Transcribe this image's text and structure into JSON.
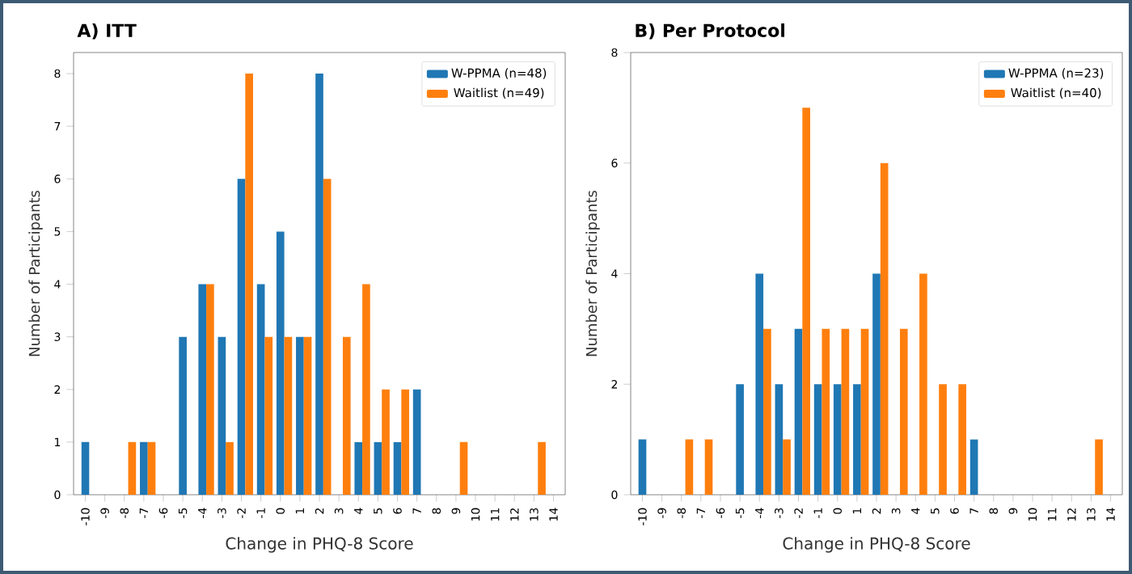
{
  "chart_data": [
    {
      "type": "bar",
      "title": "A) ITT",
      "xlabel": "Change in PHQ-8 Score",
      "ylabel": "Number of Participants",
      "categories": [
        "-10",
        "-9",
        "-8",
        "-7",
        "-6",
        "-5",
        "-4",
        "-3",
        "-2",
        "-1",
        "0",
        "1",
        "2",
        "3",
        "4",
        "5",
        "6",
        "7",
        "8",
        "9",
        "10",
        "11",
        "12",
        "13",
        "14"
      ],
      "series": [
        {
          "name": "W-PPMA (n=48)",
          "color": "#1f77b4",
          "values": [
            1,
            0,
            0,
            1,
            0,
            3,
            4,
            3,
            6,
            4,
            5,
            3,
            8,
            0,
            1,
            1,
            1,
            2,
            0,
            0,
            0,
            0,
            0,
            0,
            0
          ]
        },
        {
          "name": "Waitlist (n=49)",
          "color": "#ff7f0e",
          "values": [
            0,
            0,
            1,
            1,
            0,
            0,
            4,
            1,
            8,
            3,
            3,
            3,
            6,
            3,
            4,
            2,
            2,
            0,
            0,
            1,
            0,
            0,
            0,
            1,
            0
          ]
        }
      ],
      "ylim": [
        0,
        8.4
      ],
      "yticks": [
        0,
        1,
        2,
        3,
        4,
        5,
        6,
        7,
        8
      ],
      "legend": "top right"
    },
    {
      "type": "bar",
      "title": "B) Per Protocol",
      "xlabel": "Change in PHQ-8 Score",
      "ylabel": "Number of Participants",
      "categories": [
        "-10",
        "-9",
        "-8",
        "-7",
        "-6",
        "-5",
        "-4",
        "-3",
        "-2",
        "-1",
        "0",
        "1",
        "2",
        "3",
        "4",
        "5",
        "6",
        "7",
        "8",
        "9",
        "10",
        "11",
        "12",
        "13",
        "14"
      ],
      "series": [
        {
          "name": "W-PPMA (n=23)",
          "color": "#1f77b4",
          "values": [
            1,
            0,
            0,
            0,
            0,
            2,
            4,
            2,
            3,
            2,
            2,
            2,
            4,
            0,
            0,
            0,
            0,
            1,
            0,
            0,
            0,
            0,
            0,
            0,
            0
          ]
        },
        {
          "name": "Waitlist (n=40)",
          "color": "#ff7f0e",
          "values": [
            0,
            0,
            1,
            1,
            0,
            0,
            3,
            1,
            7,
            3,
            3,
            3,
            6,
            3,
            4,
            2,
            2,
            0,
            0,
            0,
            0,
            0,
            0,
            1,
            0
          ]
        }
      ],
      "ylim": [
        0,
        8
      ],
      "yticks": [
        0,
        2,
        4,
        6,
        8
      ],
      "legend": "top right"
    }
  ]
}
